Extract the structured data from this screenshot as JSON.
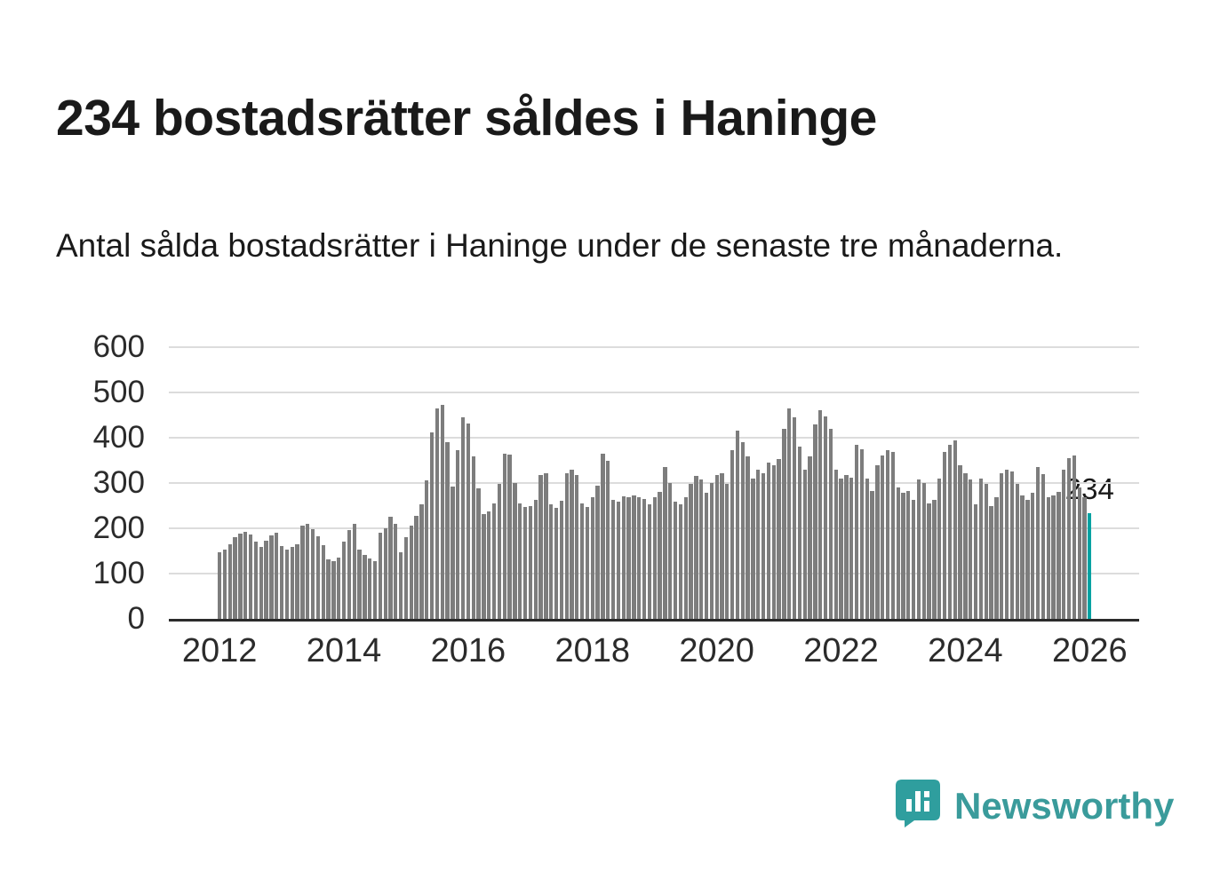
{
  "page": {
    "title": "234 bostadsrätter såldes i Haninge",
    "subtitle": "Antal sålda bostadsrätter i Haninge under de senaste tre månaderna."
  },
  "brand": {
    "name": "Newsworthy",
    "color": "#3a9b9b"
  },
  "chart_data": {
    "type": "bar",
    "title": "234 bostadsrätter såldes i Haninge",
    "subtitle": "Antal sålda bostadsrätter i Haninge under de senaste tre månaderna.",
    "xlabel": "",
    "ylabel": "",
    "x_start": "2012-01",
    "x_frequency": "monthly",
    "values": [
      148,
      152,
      165,
      180,
      188,
      192,
      186,
      170,
      158,
      172,
      184,
      190,
      160,
      152,
      158,
      164,
      206,
      210,
      198,
      182,
      162,
      132,
      128,
      136,
      170,
      196,
      210,
      152,
      142,
      134,
      128,
      190,
      200,
      226,
      210,
      148,
      180,
      205,
      228,
      252,
      305,
      412,
      465,
      472,
      390,
      292,
      372,
      445,
      432,
      358,
      288,
      232,
      238,
      255,
      298,
      365,
      362,
      300,
      255,
      248,
      250,
      262,
      318,
      322,
      252,
      245,
      260,
      322,
      330,
      318,
      255,
      248,
      268,
      295,
      365,
      350,
      262,
      258,
      270,
      268,
      272,
      268,
      265,
      252,
      268,
      280,
      335,
      300,
      258,
      252,
      268,
      298,
      315,
      308,
      278,
      300,
      318,
      322,
      298,
      372,
      415,
      390,
      358,
      310,
      330,
      322,
      345,
      340,
      352,
      420,
      465,
      445,
      380,
      330,
      358,
      430,
      460,
      448,
      420,
      330,
      310,
      318,
      312,
      385,
      375,
      310,
      282,
      340,
      360,
      372,
      368,
      290,
      278,
      282,
      262,
      308,
      300,
      255,
      262,
      310,
      368,
      385,
      395,
      340,
      322,
      308,
      252,
      310,
      298,
      250,
      268,
      322,
      330,
      325,
      298,
      272,
      262,
      278,
      335,
      320,
      268,
      272,
      280,
      330,
      355,
      360,
      290,
      268,
      234
    ],
    "highlight": {
      "index": 168,
      "value": 234,
      "label": "234",
      "color": "#00a2a2"
    },
    "bar_color": "#7d7d7d",
    "grid": true,
    "grid_color": "#dcdcdc",
    "axis_color": "#2b2b2b",
    "ylim": [
      0,
      600
    ],
    "yticks": [
      0,
      100,
      200,
      300,
      400,
      500,
      600
    ],
    "xticks": [
      {
        "label": "2012",
        "index": 0
      },
      {
        "label": "2014",
        "index": 24
      },
      {
        "label": "2016",
        "index": 48
      },
      {
        "label": "2018",
        "index": 72
      },
      {
        "label": "2020",
        "index": 96
      },
      {
        "label": "2022",
        "index": 120
      },
      {
        "label": "2024",
        "index": 144
      },
      {
        "label": "2026",
        "index": 168
      }
    ],
    "legend": false
  }
}
